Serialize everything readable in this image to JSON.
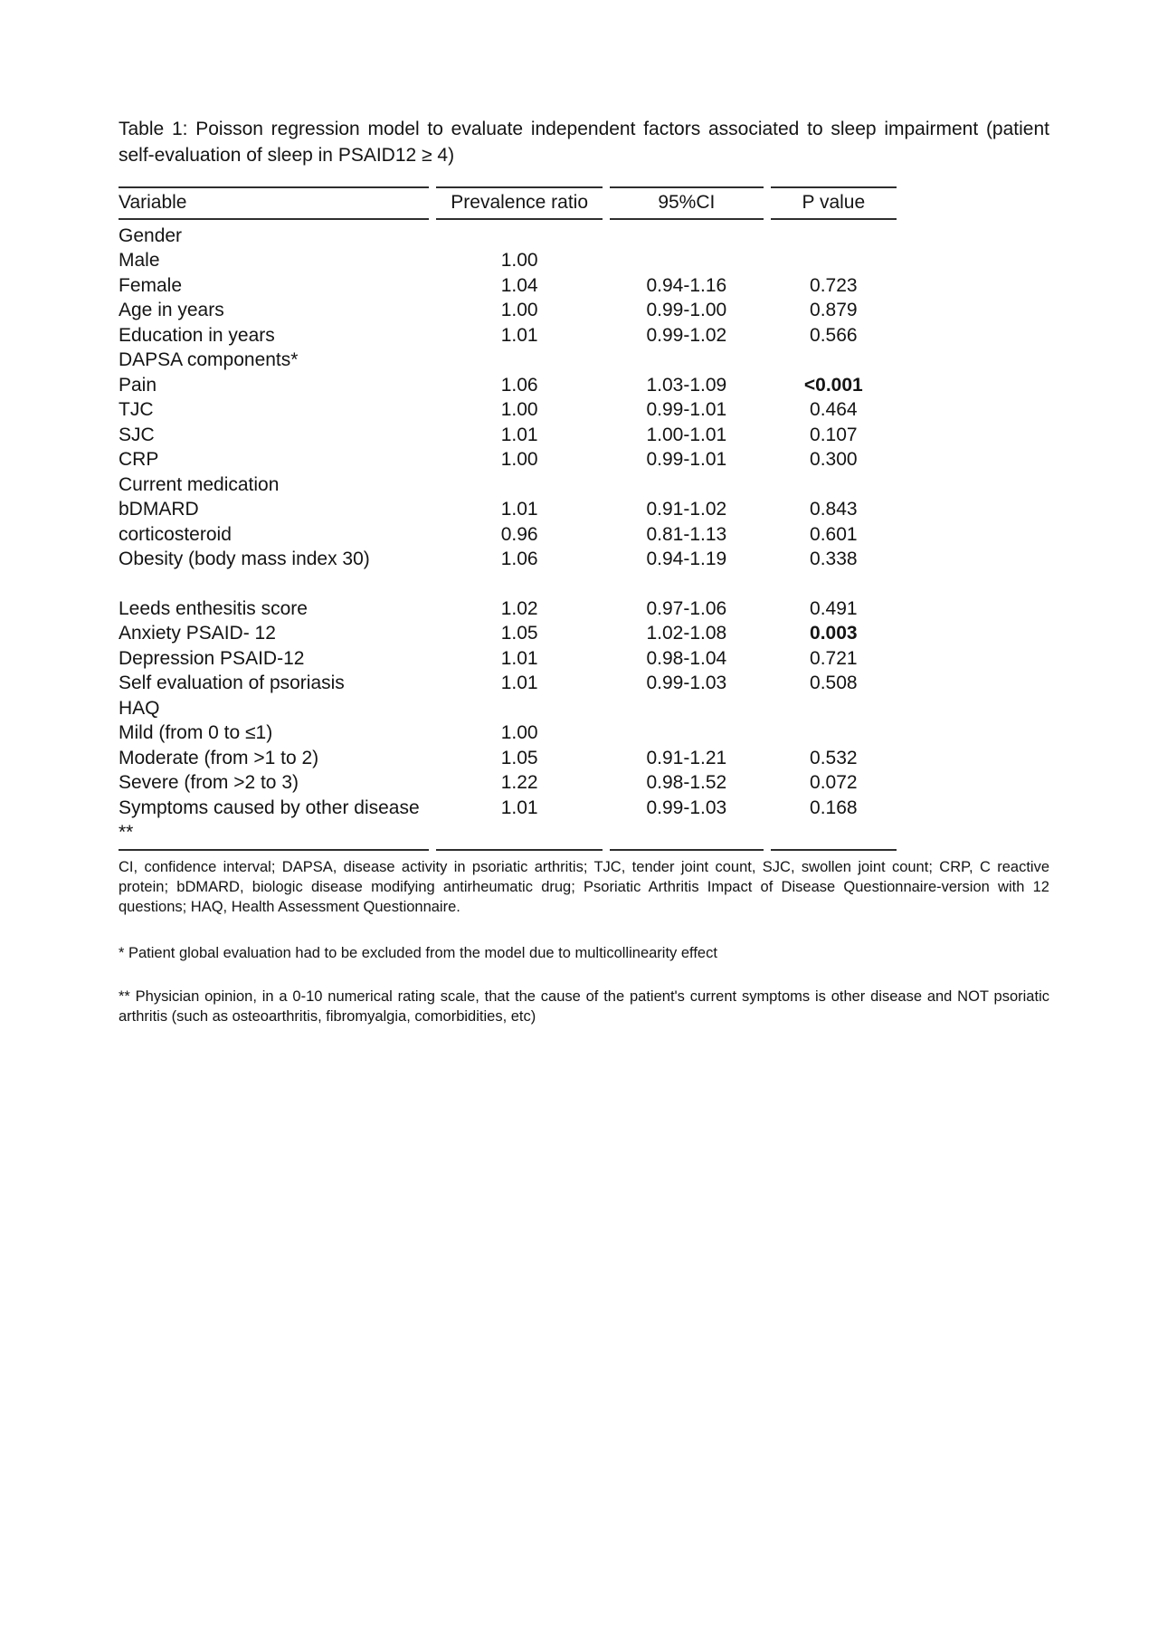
{
  "caption": "Table 1: Poisson regression model to evaluate independent factors associated to sleep impairment (patient self-evaluation of sleep in PSAID12 ≥ 4)",
  "table": {
    "headers": [
      "Variable",
      "Prevalence ratio",
      "95%CI",
      "P value"
    ],
    "rows": [
      {
        "label": "Gender",
        "indent": 0,
        "pr": "",
        "ci": "",
        "p": ""
      },
      {
        "label": "Male",
        "indent": 1,
        "pr": "1.00",
        "ci": "",
        "p": ""
      },
      {
        "label": "Female",
        "indent": 1,
        "pr": "1.04",
        "ci": "0.94-1.16",
        "p": "0.723"
      },
      {
        "label": "Age in years",
        "indent": 0,
        "pr": "1.00",
        "ci": "0.99-1.00",
        "p": "0.879"
      },
      {
        "label": "Education in years",
        "indent": 0,
        "pr": "1.01",
        "ci": "0.99-1.02",
        "p": "0.566"
      },
      {
        "label": "DAPSA components*",
        "indent": 0,
        "pr": "",
        "ci": "",
        "p": ""
      },
      {
        "label": "Pain",
        "indent": 1,
        "pr": "1.06",
        "ci": "1.03-1.09",
        "p": "<0.001",
        "p_bold": true
      },
      {
        "label": "TJC",
        "indent": 1,
        "pr": "1.00",
        "ci": "0.99-1.01",
        "p": "0.464"
      },
      {
        "label": "SJC",
        "indent": 1,
        "pr": "1.01",
        "ci": "1.00-1.01",
        "p": "0.107"
      },
      {
        "label": "CRP",
        "indent": 1,
        "pr": "1.00",
        "ci": "0.99-1.01",
        "p": "0.300"
      },
      {
        "label": "Current medication",
        "indent": 0,
        "pr": "",
        "ci": "",
        "p": ""
      },
      {
        "label": "bDMARD",
        "indent": 1,
        "pr": "1.01",
        "ci": "0.91-1.02",
        "p": "0.843"
      },
      {
        "label": "corticosteroid",
        "indent": 1,
        "pr": "0.96",
        "ci": "0.81-1.13",
        "p": "0.601"
      },
      {
        "label": "Obesity (body mass index 30)",
        "indent": 0,
        "pr": "1.06",
        "ci": "0.94-1.19",
        "p": "0.338"
      },
      {
        "label": "",
        "indent": 0,
        "pr": "",
        "ci": "",
        "p": "",
        "spacer": true
      },
      {
        "label": "Leeds enthesitis score",
        "indent": 0,
        "pr": "1.02",
        "ci": "0.97-1.06",
        "p": "0.491"
      },
      {
        "label": "Anxiety PSAID- 12",
        "indent": 0,
        "pr": "1.05",
        "ci": "1.02-1.08",
        "p": "0.003",
        "p_bold": true
      },
      {
        "label": "Depression PSAID-12",
        "indent": 0,
        "pr": "1.01",
        "ci": "0.98-1.04",
        "p": "0.721"
      },
      {
        "label": "Self evaluation of psoriasis",
        "indent": 0,
        "pr": "1.01",
        "ci": "0.99-1.03",
        "p": "0.508"
      },
      {
        "label": "HAQ",
        "indent": 0,
        "pr": "",
        "ci": "",
        "p": ""
      },
      {
        "label": "Mild (from 0 to ≤1)",
        "indent": 2,
        "pr": "1.00",
        "ci": "",
        "p": ""
      },
      {
        "label": "Moderate (from >1 to 2)",
        "indent": 2,
        "pr": "1.05",
        "ci": "0.91-1.21",
        "p": "0.532"
      },
      {
        "label": "Severe (from >2 to 3)",
        "indent": 2,
        "pr": "1.22",
        "ci": "0.98-1.52",
        "p": "0.072"
      },
      {
        "label": "Symptoms caused by other disease **",
        "indent": 0,
        "pr": "1.01",
        "ci": "0.99-1.03",
        "p": "0.168",
        "last": true
      }
    ]
  },
  "footnotes": {
    "abbreviations": "CI, confidence interval; DAPSA, disease activity in psoriatic arthritis; TJC, tender joint count, SJC, swollen joint count; CRP, C reactive protein; bDMARD, biologic disease modifying antirheumatic drug; Psoriatic Arthritis Impact of Disease Questionnaire-version with 12 questions; HAQ, Health Assessment Questionnaire.",
    "single_asterisk": "* Patient global evaluation had to be excluded from the model due to multicollinearity effect",
    "double_asterisk": "** Physician opinion, in a 0-10 numerical rating scale, that the cause of the patient's current symptoms is other disease and NOT psoriatic arthritis (such as osteoarthritis, fibromyalgia, comorbidities, etc)"
  }
}
